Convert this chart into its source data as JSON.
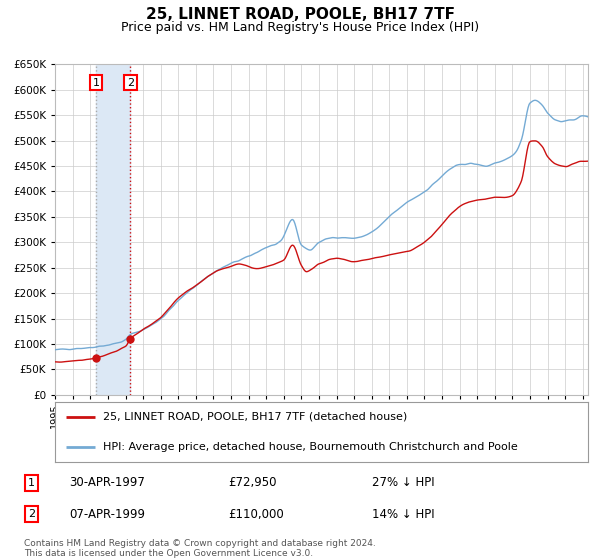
{
  "title": "25, LINNET ROAD, POOLE, BH17 7TF",
  "subtitle": "Price paid vs. HM Land Registry's House Price Index (HPI)",
  "ylim": [
    0,
    650000
  ],
  "yticks": [
    0,
    50000,
    100000,
    150000,
    200000,
    250000,
    300000,
    350000,
    400000,
    450000,
    500000,
    550000,
    600000,
    650000
  ],
  "xlim_start": 1995.0,
  "xlim_end": 2025.3,
  "sale1_date": 1997.33,
  "sale1_price": 72950,
  "sale2_date": 1999.27,
  "sale2_price": 110000,
  "legend_line1": "25, LINNET ROAD, POOLE, BH17 7TF (detached house)",
  "legend_line2": "HPI: Average price, detached house, Bournemouth Christchurch and Poole",
  "table_row1": [
    "1",
    "30-APR-1997",
    "£72,950",
    "27% ↓ HPI"
  ],
  "table_row2": [
    "2",
    "07-APR-1999",
    "£110,000",
    "14% ↓ HPI"
  ],
  "footer": "Contains HM Land Registry data © Crown copyright and database right 2024.\nThis data is licensed under the Open Government Licence v3.0.",
  "hpi_color": "#74aad4",
  "price_color": "#cc1111",
  "grid_color": "#cccccc",
  "bg_color": "#ffffff",
  "shade_color": "#dce8f5",
  "title_fontsize": 11,
  "subtitle_fontsize": 9
}
